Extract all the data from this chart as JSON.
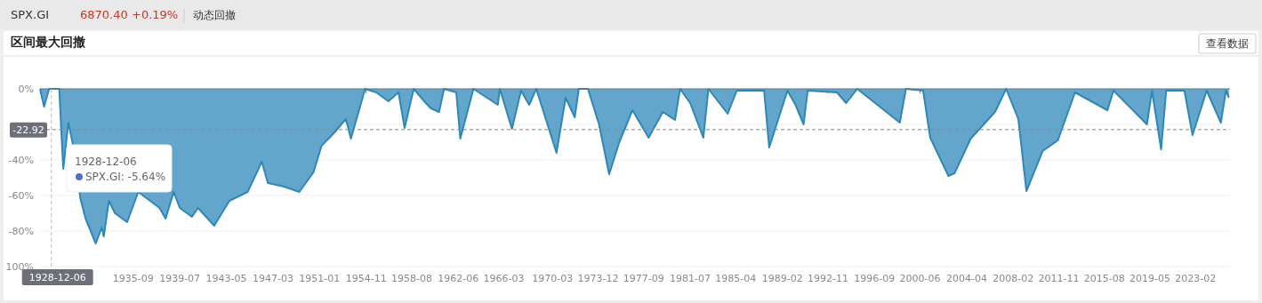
{
  "chart_data": {
    "type": "area",
    "title": "区间最大回撤",
    "annotations": [
      "SPX.GI",
      "6870.40",
      "+0.19%",
      "动态回撤",
      "查看数据",
      "1928-12-06",
      ": -5.64%"
    ],
    "x": [
      "1928-01",
      "1928-05",
      "1928-10",
      "1929-08",
      "1929-11",
      "1929-12",
      "1930-05",
      "1930-09",
      "1931-05",
      "1931-10",
      "1932-08",
      "1933-02",
      "1933-04",
      "1933-09",
      "1934-03",
      "1935-03",
      "1936-02",
      "1937-11",
      "1938-05",
      "1939-01",
      "1939-07",
      "1940-07",
      "1941-01",
      "1942-05",
      "1943-08",
      "1945-02",
      "1946-04",
      "1946-10",
      "1948-02",
      "1949-05",
      "1950-07",
      "1951-03",
      "1952-03",
      "1953-03",
      "1953-08",
      "1954-10",
      "1955-09",
      "1956-09",
      "1957-07",
      "1958-01",
      "1958-10",
      "1959-10",
      "1960-03",
      "1960-11",
      "1961-04",
      "1962-04",
      "1962-08",
      "1963-09",
      "1965-09",
      "1965-11",
      "1966-11",
      "1967-08",
      "1968-04",
      "1968-11",
      "1970-07",
      "1971-04",
      "1972-01",
      "1972-05",
      "1973-02",
      "1974-01",
      "1974-11",
      "1975-09",
      "1976-10",
      "1978-02",
      "1979-04",
      "1980-04",
      "1980-09",
      "1981-07",
      "1982-08",
      "1983-01",
      "1984-08",
      "1985-05",
      "1987-08",
      "1988-01",
      "1989-07",
      "1990-03",
      "1990-11",
      "1991-03",
      "1993-08",
      "1994-05",
      "1995-04",
      "1998-10",
      "1999-04",
      "2000-09",
      "2001-04",
      "2002-10",
      "2003-04",
      "2004-08",
      "2006-08",
      "2007-07",
      "2008-07",
      "2009-03",
      "2010-07",
      "2011-10",
      "2013-03",
      "2015-11",
      "2016-05",
      "2019-02",
      "2019-07",
      "2020-04",
      "2020-09",
      "2022-03",
      "2022-11",
      "2024-01",
      "2025-03",
      "2025-08",
      "2025-11"
    ],
    "series": [
      {
        "name": "SPX.GI",
        "color": "#2b88bb",
        "values": [
          0,
          -10,
          0,
          0,
          -35,
          -45,
          -19,
          -30,
          -62,
          -73,
          -87,
          -78,
          -83,
          -63,
          -70,
          -75,
          -58,
          -67,
          -73,
          -58,
          -67,
          -72,
          -67,
          -77,
          -63,
          -58,
          -41,
          -53,
          -55,
          -58,
          -47,
          -32,
          -25,
          -17,
          -28,
          0,
          -2,
          -7,
          -2,
          -22,
          0,
          -8,
          -11,
          -13,
          0,
          -2,
          -28,
          0,
          -9,
          0,
          -22.5,
          -1,
          -9,
          0,
          -36,
          -5,
          -16,
          0,
          0,
          -20,
          -48,
          -30,
          -12,
          -27.5,
          -13,
          -17.5,
          0,
          -8,
          -27.5,
          0,
          -14,
          -1,
          -1,
          -33,
          -1,
          -9,
          -20,
          -1,
          -2,
          -8,
          0,
          -19,
          0,
          -1,
          -27.5,
          -49,
          -47.5,
          -28,
          -13,
          0,
          -17,
          -57.5,
          -35,
          -29,
          -2,
          -12,
          -1,
          -20,
          -1,
          -34,
          -1,
          -1,
          -26,
          -1,
          -19,
          -1,
          -5
        ]
      }
    ],
    "xlim": [
      "1928-01",
      "2025-12"
    ],
    "xticks": [
      {
        "value": "1931-10",
        "label": null
      },
      "1935-09",
      "1939-07",
      "1943-05",
      "1947-03",
      "1951-01",
      "1954-11",
      "1958-08",
      "1962-06",
      "1966-03",
      "1970-03",
      "1973-12",
      "1977-09",
      "1981-07",
      "1985-04",
      "1989-02",
      "1992-11",
      "1996-09",
      "2000-06",
      "2004-04",
      "2008-02",
      "2011-11",
      "2015-08",
      "2019-05",
      "2023-02"
    ],
    "ylim": [
      -100,
      0
    ],
    "yticks": [
      {
        "value": 0,
        "label": "0%"
      },
      {
        "value": -20,
        "label": null
      },
      {
        "value": -40,
        "label": "-40%"
      },
      {
        "value": -60,
        "label": "-60%"
      },
      {
        "value": -80,
        "label": "-80%"
      },
      {
        "value": -100,
        "label": "100%"
      }
    ],
    "grid": "y",
    "ref_lines": [
      {
        "axis": "y",
        "value": -22.92,
        "label": "-22.92",
        "color": "#888888",
        "line_style": "dashed"
      },
      {
        "axis": "x",
        "value": "1928-12-06",
        "label": "1928-12-06",
        "color": "#bbbbbb",
        "line_style": "dashed"
      }
    ]
  }
}
